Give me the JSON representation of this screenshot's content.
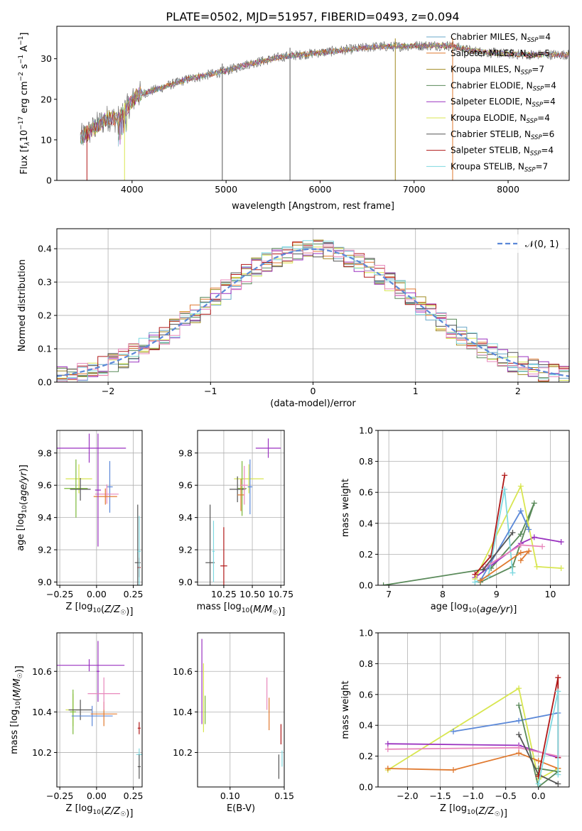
{
  "title": "PLATE=0502, MJD=51957, FIBERID=0493, z=0.094",
  "palette": {
    "chabrier_miles": "#6aa8c8",
    "salpeter_miles": "#e07a30",
    "kroupa_miles": "#a08a20",
    "chabrier_elodie": "#5a8a5a",
    "salpeter_elodie": "#9a32c0",
    "kroupa_elodie": "#d8e650",
    "chabrier_stelib": "#555555",
    "salpeter_stelib": "#b01818",
    "kroupa_stelib": "#7fd8e0",
    "blue_model": "#5b88d8",
    "pink_model": "#e888bc",
    "green_model": "#7ab838",
    "normal_curve": "#5b88d8",
    "grid": "#b0b0b0"
  },
  "chart_data": [
    {
      "id": "spectrum",
      "type": "line",
      "xlabel": "wavelength [Angstrom, rest frame]",
      "ylabel": "Flux [f_λ10^-17 erg cm^-2 s^-1 A^-1]",
      "xlim": [
        3200,
        8650
      ],
      "ylim": [
        0,
        38
      ],
      "xticks": [
        4000,
        5000,
        6000,
        7000,
        8000
      ],
      "yticks": [
        0,
        10,
        20,
        30
      ],
      "grid": false,
      "legend_position": "right",
      "legend": [
        {
          "label": "Chabrier MILES, N",
          "sub": "SSP",
          "tail": "=4",
          "color": "chabrier_miles"
        },
        {
          "label": "Salpeter MILES, N",
          "sub": "SSP",
          "tail": "=5",
          "color": "salpeter_miles"
        },
        {
          "label": "Kroupa MILES, N",
          "sub": "SSP",
          "tail": "=7",
          "color": "kroupa_miles"
        },
        {
          "label": "Chabrier ELODIE, N",
          "sub": "SSP",
          "tail": "=4",
          "color": "chabrier_elodie"
        },
        {
          "label": "Salpeter ELODIE, N",
          "sub": "SSP",
          "tail": "=4",
          "color": "salpeter_elodie"
        },
        {
          "label": "Kroupa ELODIE, N",
          "sub": "SSP",
          "tail": "=4",
          "color": "kroupa_elodie"
        },
        {
          "label": "Chabrier STELIB, N",
          "sub": "SSP",
          "tail": "=6",
          "color": "chabrier_stelib"
        },
        {
          "label": "Salpeter STELIB, N",
          "sub": "SSP",
          "tail": "=4",
          "color": "salpeter_stelib"
        },
        {
          "label": "Kroupa STELIB, N",
          "sub": "SSP",
          "tail": "=7",
          "color": "kroupa_stelib"
        }
      ],
      "continuum": [
        [
          3450,
          10.5
        ],
        [
          3550,
          12
        ],
        [
          3650,
          14
        ],
        [
          3750,
          15.5
        ],
        [
          3850,
          15
        ],
        [
          3950,
          18
        ],
        [
          4050,
          21
        ],
        [
          4200,
          22
        ],
        [
          4400,
          23.5
        ],
        [
          4600,
          25
        ],
        [
          4800,
          26
        ],
        [
          5000,
          27
        ],
        [
          5200,
          28.5
        ],
        [
          5400,
          29.5
        ],
        [
          5600,
          30.5
        ],
        [
          5800,
          31
        ],
        [
          6000,
          31.5
        ],
        [
          6200,
          32
        ],
        [
          6400,
          32.5
        ],
        [
          6600,
          33
        ],
        [
          6800,
          33
        ],
        [
          7000,
          33.2
        ],
        [
          7200,
          33.3
        ],
        [
          7400,
          33.2
        ],
        [
          7600,
          32
        ],
        [
          7800,
          31.5
        ],
        [
          8000,
          31.2
        ],
        [
          8200,
          31
        ],
        [
          8400,
          31
        ],
        [
          8650,
          31
        ]
      ],
      "spikes": [
        {
          "x": 3520,
          "y_min": 0,
          "color": "salpeter_stelib"
        },
        {
          "x": 3920,
          "y_min": 0,
          "color": "kroupa_elodie"
        },
        {
          "x": 4960,
          "y_min": 0,
          "color": "chabrier_stelib"
        },
        {
          "x": 5680,
          "y_min": 0,
          "color": "chabrier_stelib"
        },
        {
          "x": 6800,
          "y_min": 0,
          "color": "kroupa_miles"
        },
        {
          "x": 7410,
          "y_min": 0,
          "color": "salpeter_miles"
        }
      ]
    },
    {
      "id": "residual_hist",
      "type": "bar",
      "xlabel": "(data-model)/error",
      "ylabel": "Normed distribution",
      "xlim": [
        -2.5,
        2.5
      ],
      "ylim": [
        0,
        0.46
      ],
      "xticks": [
        -2,
        -1,
        0,
        1,
        2
      ],
      "yticks": [
        0.0,
        0.1,
        0.2,
        0.3,
        0.4
      ],
      "grid": true,
      "legend_position": "top-right",
      "legend_label": "𝒩(0, 1)",
      "curve": "normal(0,1)"
    },
    {
      "id": "age_vs_z",
      "type": "scatter",
      "xlabel": "Z [log10(Z/Z☉)]",
      "ylabel": "age  [log10(age/yr)]",
      "xlim": [
        -0.27,
        0.31
      ],
      "ylim": [
        8.98,
        9.94
      ],
      "xticks": [
        -0.25,
        0.0,
        0.25
      ],
      "yticks": [
        9.0,
        9.2,
        9.4,
        9.6,
        9.8
      ],
      "grid": true,
      "points": [
        {
          "x": -0.05,
          "y": 9.83,
          "xerr": 0.25,
          "yerr": 0.09,
          "color": "salpeter_elodie"
        },
        {
          "x": -0.12,
          "y": 9.64,
          "xerr": 0.09,
          "yerr": 0.09,
          "color": "kroupa_elodie"
        },
        {
          "x": -0.14,
          "y": 9.58,
          "xerr": 0.08,
          "yerr": 0.18,
          "color": "green_model"
        },
        {
          "x": -0.11,
          "y": 9.575,
          "xerr": 0.07,
          "yerr": 0.07,
          "color": "chabrier_stelib"
        },
        {
          "x": 0.09,
          "y": 9.59,
          "xerr": 0.02,
          "yerr": 0.16,
          "color": "blue_model"
        },
        {
          "x": 0.07,
          "y": 9.545,
          "xerr": 0.08,
          "yerr": 0.06,
          "color": "pink_model"
        },
        {
          "x": 0.06,
          "y": 9.53,
          "xerr": 0.08,
          "yerr": 0.05,
          "color": "salpeter_miles"
        },
        {
          "x": 0.01,
          "y": 9.57,
          "xerr": 0.02,
          "yerr": 0.35,
          "color": "salpeter_elodie"
        },
        {
          "x": 0.28,
          "y": 9.12,
          "xerr": 0.02,
          "yerr": 0.36,
          "color": "chabrier_stelib"
        },
        {
          "x": 0.29,
          "y": 9.09,
          "xerr": 0.01,
          "yerr": 0.06,
          "color": "salpeter_stelib"
        },
        {
          "x": 0.29,
          "y": 9.19,
          "xerr": 0.01,
          "yerr": 0.22,
          "color": "kroupa_stelib"
        }
      ]
    },
    {
      "id": "age_vs_mass",
      "type": "scatter",
      "xlabel": "mass [log10(M/M☉)]",
      "ylabel": "",
      "xlim": [
        10.02,
        10.78
      ],
      "ylim": [
        8.98,
        9.94
      ],
      "xticks": [
        10.25,
        10.5,
        10.75
      ],
      "yticks": [
        9.0,
        9.2,
        9.4,
        9.6,
        9.8
      ],
      "grid": true,
      "points": [
        {
          "x": 10.64,
          "y": 9.83,
          "xerr": 0.11,
          "yerr": 0.06,
          "color": "salpeter_elodie"
        },
        {
          "x": 10.47,
          "y": 9.64,
          "xerr": 0.13,
          "yerr": 0.09,
          "color": "kroupa_elodie"
        },
        {
          "x": 10.41,
          "y": 9.58,
          "xerr": 0.04,
          "yerr": 0.17,
          "color": "green_model"
        },
        {
          "x": 10.37,
          "y": 9.575,
          "xerr": 0.07,
          "yerr": 0.08,
          "color": "chabrier_stelib"
        },
        {
          "x": 10.4,
          "y": 9.54,
          "xerr": 0.03,
          "yerr": 0.1,
          "color": "salpeter_miles"
        },
        {
          "x": 10.48,
          "y": 9.59,
          "xerr": 0.02,
          "yerr": 0.17,
          "color": "blue_model"
        },
        {
          "x": 10.43,
          "y": 9.6,
          "xerr": 0.03,
          "yerr": 0.12,
          "color": "pink_model"
        },
        {
          "x": 10.13,
          "y": 9.12,
          "xerr": 0.04,
          "yerr": 0.36,
          "color": "chabrier_stelib"
        },
        {
          "x": 10.25,
          "y": 9.1,
          "xerr": 0.03,
          "yerr": 0.24,
          "color": "salpeter_stelib"
        },
        {
          "x": 10.16,
          "y": 9.19,
          "xerr": 0.01,
          "yerr": 0.19,
          "color": "kroupa_stelib"
        }
      ]
    },
    {
      "id": "weight_vs_age",
      "type": "line",
      "xlabel": "age  [log10(age/yr)]",
      "ylabel": "mass weight",
      "xlim": [
        6.8,
        10.35
      ],
      "ylim": [
        0,
        1.0
      ],
      "xticks": [
        7,
        8,
        9,
        10
      ],
      "yticks": [
        0.0,
        0.2,
        0.4,
        0.6,
        0.8,
        1.0
      ],
      "grid": true,
      "series": [
        {
          "color": "chabrier_elodie",
          "x": [
            6.9,
            8.9,
            9.45,
            9.7,
            9.3,
            8.7
          ],
          "y": [
            0.0,
            0.11,
            0.33,
            0.53,
            0.12,
            0.02
          ]
        },
        {
          "color": "salpeter_elodie",
          "x": [
            8.6,
            9.45,
            9.7,
            10.2
          ],
          "y": [
            0.05,
            0.27,
            0.31,
            0.28
          ]
        },
        {
          "color": "kroupa_elodie",
          "x": [
            8.6,
            9.45,
            9.75,
            10.2
          ],
          "y": [
            0.04,
            0.64,
            0.12,
            0.11
          ]
        },
        {
          "color": "salpeter_stelib",
          "x": [
            8.6,
            8.9,
            9.15
          ],
          "y": [
            0.07,
            0.19,
            0.71
          ]
        },
        {
          "color": "kroupa_stelib",
          "x": [
            8.6,
            8.85,
            9.15,
            9.3
          ],
          "y": [
            0.02,
            0.06,
            0.62,
            0.08
          ]
        },
        {
          "color": "blue_model",
          "x": [
            8.7,
            9.45,
            9.6
          ],
          "y": [
            0.03,
            0.48,
            0.36
          ]
        },
        {
          "color": "pink_model",
          "x": [
            8.8,
            9.45,
            9.85
          ],
          "y": [
            0.12,
            0.26,
            0.25
          ]
        },
        {
          "color": "salpeter_miles",
          "x": [
            8.7,
            9.45,
            9.6,
            9.45
          ],
          "y": [
            0.03,
            0.21,
            0.22,
            0.16
          ]
        },
        {
          "color": "chabrier_stelib",
          "x": [
            8.75,
            9.3
          ],
          "y": [
            0.1,
            0.34
          ]
        }
      ]
    },
    {
      "id": "mass_vs_z",
      "type": "scatter",
      "xlabel": "Z [log10(Z/Z☉)]",
      "ylabel": "mass [log10(M/M☉)]",
      "xlim": [
        -0.27,
        0.31
      ],
      "ylim": [
        10.03,
        10.79
      ],
      "xticks": [
        -0.25,
        0.0,
        0.25
      ],
      "yticks": [
        10.2,
        10.4,
        10.6
      ],
      "grid": true,
      "points": [
        {
          "x": -0.05,
          "y": 10.63,
          "xerr": 0.24,
          "yerr": 0.03,
          "color": "salpeter_elodie"
        },
        {
          "x": 0.01,
          "y": 10.6,
          "xerr": 0.01,
          "yerr": 0.15,
          "color": "salpeter_elodie"
        },
        {
          "x": -0.16,
          "y": 10.41,
          "xerr": 0.05,
          "yerr": 0.08,
          "color": "kroupa_elodie"
        },
        {
          "x": -0.16,
          "y": 10.4,
          "xerr": 0.02,
          "yerr": 0.11,
          "color": "green_model"
        },
        {
          "x": -0.11,
          "y": 10.41,
          "xerr": 0.08,
          "yerr": 0.05,
          "color": "chabrier_stelib"
        },
        {
          "x": -0.03,
          "y": 10.38,
          "xerr": 0.14,
          "yerr": 0.05,
          "color": "blue_model"
        },
        {
          "x": 0.05,
          "y": 10.39,
          "xerr": 0.09,
          "yerr": 0.06,
          "color": "salpeter_miles"
        },
        {
          "x": 0.05,
          "y": 10.49,
          "xerr": 0.11,
          "yerr": 0.08,
          "color": "pink_model"
        },
        {
          "x": 0.29,
          "y": 10.32,
          "xerr": 0.01,
          "yerr": 0.03,
          "color": "salpeter_stelib"
        },
        {
          "x": 0.29,
          "y": 10.19,
          "xerr": 0.02,
          "yerr": 0.03,
          "color": "kroupa_stelib"
        },
        {
          "x": 0.29,
          "y": 10.13,
          "xerr": 0.01,
          "yerr": 0.06,
          "color": "chabrier_stelib"
        }
      ]
    },
    {
      "id": "mass_vs_ebv",
      "type": "scatter",
      "xlabel": "E(B-V)",
      "ylabel": "",
      "xlim": [
        0.07,
        0.15
      ],
      "ylim": [
        10.03,
        10.79
      ],
      "xticks": [
        0.1,
        0.15
      ],
      "yticks": [
        10.2,
        10.4,
        10.6
      ],
      "grid": true,
      "points": [
        {
          "x": 0.074,
          "y": 10.55,
          "xerr": 0,
          "yerr": 0.21,
          "color": "salpeter_elodie"
        },
        {
          "x": 0.0755,
          "y": 10.47,
          "xerr": 0,
          "yerr": 0.17,
          "color": "kroupa_elodie"
        },
        {
          "x": 0.077,
          "y": 10.41,
          "xerr": 0,
          "yerr": 0.07,
          "color": "green_model"
        },
        {
          "x": 0.134,
          "y": 10.49,
          "xerr": 0,
          "yerr": 0.08,
          "color": "pink_model"
        },
        {
          "x": 0.136,
          "y": 10.39,
          "xerr": 0,
          "yerr": 0.08,
          "color": "salpeter_miles"
        },
        {
          "x": 0.145,
          "y": 10.13,
          "xerr": 0,
          "yerr": 0.06,
          "color": "chabrier_stelib"
        },
        {
          "x": 0.147,
          "y": 10.29,
          "xerr": 0,
          "yerr": 0.05,
          "color": "salpeter_stelib"
        },
        {
          "x": 0.148,
          "y": 10.17,
          "xerr": 0,
          "yerr": 0.04,
          "color": "kroupa_stelib"
        }
      ]
    },
    {
      "id": "weight_vs_z",
      "type": "line",
      "xlabel": "Z [log10(Z/Z☉)]",
      "ylabel": "mass weight",
      "xlim": [
        -2.45,
        0.47
      ],
      "ylim": [
        0,
        1.0
      ],
      "xticks": [
        -2.0,
        -1.5,
        -1.0,
        -0.5,
        0.0
      ],
      "yticks": [
        0.0,
        0.2,
        0.4,
        0.6,
        0.8,
        1.0
      ],
      "grid": true,
      "series": [
        {
          "color": "kroupa_elodie",
          "x": [
            -2.3,
            -0.3,
            0.0,
            0.3
          ],
          "y": [
            0.11,
            0.64,
            0.05,
            0.12
          ]
        },
        {
          "color": "salpeter_elodie",
          "x": [
            -2.3,
            -0.3,
            0.3
          ],
          "y": [
            0.28,
            0.27,
            0.19
          ]
        },
        {
          "color": "pink_model",
          "x": [
            -2.3,
            -0.3,
            0.3
          ],
          "y": [
            0.245,
            0.255,
            0.2
          ]
        },
        {
          "color": "salpeter_miles",
          "x": [
            -2.3,
            -1.3,
            -0.3,
            0.0,
            0.3
          ],
          "y": [
            0.12,
            0.11,
            0.22,
            0.17,
            0.12
          ]
        },
        {
          "color": "blue_model",
          "x": [
            -1.3,
            -0.3,
            0.3
          ],
          "y": [
            0.36,
            0.43,
            0.48
          ]
        },
        {
          "color": "chabrier_elodie",
          "x": [
            -0.3,
            0.0,
            0.3,
            0.0
          ],
          "y": [
            0.53,
            0.0,
            0.1,
            0.12
          ]
        },
        {
          "color": "chabrier_stelib",
          "x": [
            -0.3,
            0.0,
            0.3
          ],
          "y": [
            0.34,
            0.08,
            0.02
          ]
        },
        {
          "color": "salpeter_stelib",
          "x": [
            0.0,
            0.3,
            0.3
          ],
          "y": [
            0.07,
            0.71,
            0.19
          ]
        },
        {
          "color": "kroupa_stelib",
          "x": [
            0.0,
            0.3,
            0.3
          ],
          "y": [
            0.02,
            0.62,
            0.08
          ]
        }
      ]
    }
  ]
}
